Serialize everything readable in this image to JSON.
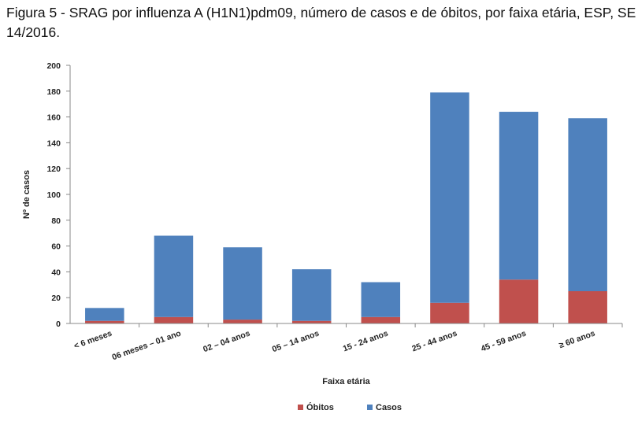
{
  "chart_data": {
    "type": "bar",
    "stacked": true,
    "title": "Figura 5 - SRAG por influenza A (H1N1)pdm09, número de casos e de óbitos, por faixa etária, ESP, SE 14/2016.",
    "xlabel": "Faixa etária",
    "ylabel": "Nº de casos",
    "ylim": [
      0,
      200
    ],
    "yticks": [
      0,
      20,
      40,
      60,
      80,
      100,
      120,
      140,
      160,
      180,
      200
    ],
    "categories": [
      "< 6 meses",
      "06 meses – 01 ano",
      "02 – 04 anos",
      "05 – 14 anos",
      "15 - 24 anos",
      "25 - 44 anos",
      "45 - 59 anos",
      "≥ 60 anos"
    ],
    "series": [
      {
        "name": "Óbitos",
        "color": "#c0504d",
        "values": [
          2,
          5,
          3,
          2,
          5,
          16,
          34,
          25
        ]
      },
      {
        "name": "Casos",
        "color": "#4f81bd",
        "values": [
          10,
          63,
          56,
          40,
          27,
          163,
          130,
          134
        ]
      }
    ],
    "grid": false,
    "legend_position": "bottom"
  }
}
